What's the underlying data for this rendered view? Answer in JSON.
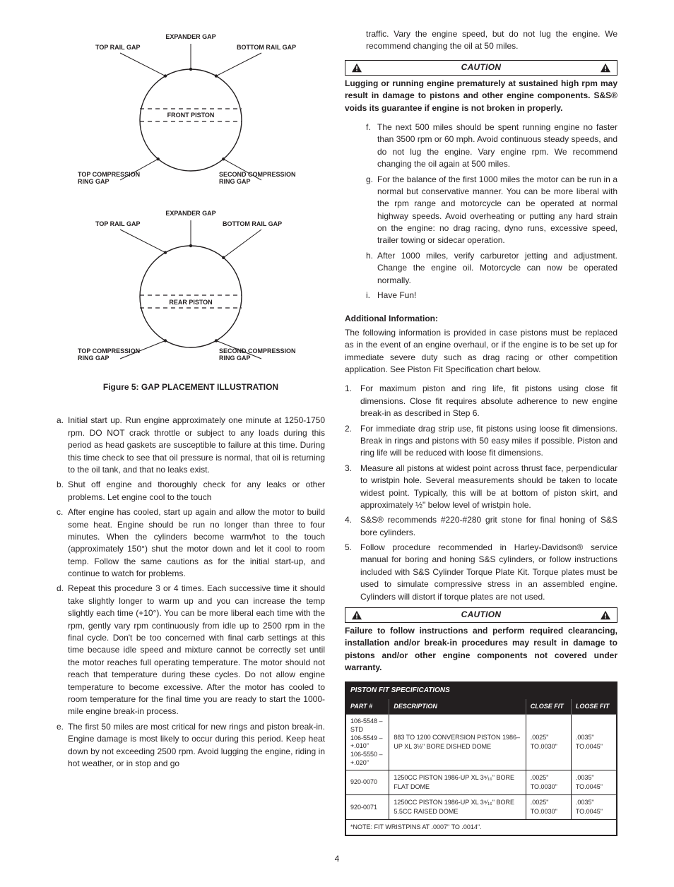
{
  "diagrams": {
    "radius": 72,
    "stroke": "#231f20",
    "stroke_width": 1.4,
    "front": {
      "center_label": "FRONT PISTON",
      "labels": {
        "top_rail": "TOP RAIL GAP",
        "expander": "EXPANDER GAP",
        "bottom_rail": "BOTTOM RAIL GAP",
        "top_comp": "TOP COMPRESSION\nRING GAP",
        "second_comp": "SECOND COMPRESSION\nRING GAP"
      }
    },
    "rear": {
      "center_label": "REAR PISTON",
      "labels": {
        "top_rail": "TOP RAIL GAP",
        "expander": "EXPANDER GAP",
        "bottom_rail": "BOTTOM RAIL GAP",
        "top_comp": "TOP COMPRESSION\nRING GAP",
        "second_comp": "SECOND COMPRESSION\nRING GAP"
      }
    }
  },
  "figure_caption": "Figure 5: GAP PLACEMENT ILLUSTRATION",
  "left_list": [
    {
      "m": "a.",
      "t": "Initial start up. Run engine approximately one minute at 1250-1750 rpm. DO NOT crack throttle or subject to any loads during this period as head gaskets are susceptible to failure at this time. During this time check to see that oil pressure is normal, that oil is returning to the oil tank, and that no leaks exist."
    },
    {
      "m": "b.",
      "t": "Shut off engine and thoroughly check for any leaks or other problems. Let engine cool to the touch"
    },
    {
      "m": "c.",
      "t": "After engine has cooled, start up again and allow the motor to build some heat. Engine should be run no longer than three to four minutes. When the cylinders become warm/hot to the touch (approximately 150°) shut the motor down and let it cool to room temp. Follow the same cautions as for the initial start-up, and continue to watch for problems."
    },
    {
      "m": "d.",
      "t": "Repeat this procedure 3 or 4 times. Each successive time it should take slightly longer to warm up and you can increase the temp slightly each time (+10°). You can be more liberal each time with the rpm, gently vary rpm continuously from idle up to 2500 rpm in the final cycle. Don't be too concerned with final carb settings at this time because idle speed and mixture cannot be correctly set until the motor reaches full operating temperature. The motor should not reach that temperature during these cycles. Do not allow engine temperature to become excessive. After the motor has cooled to room temperature for the final time you are ready to start the 1000-mile engine break-in process."
    },
    {
      "m": "e.",
      "t": "The first 50 miles are most critical for new rings and piston break-in. Engine damage is most likely to occur during this period. Keep heat down by not exceeding 2500 rpm. Avoid lugging the engine, riding in hot weather, or in stop and go"
    }
  ],
  "right_top_para": "traffic. Vary the engine speed, but do not lug the engine. We recommend changing the oil at 50 miles.",
  "caution1": {
    "label": "CAUTION",
    "text": "Lugging or running engine prematurely at sustained high rpm may result in damage to pistons and other engine components. S&S® voids its guarantee if engine is not broken in properly."
  },
  "right_list": [
    {
      "m": "f.",
      "t": "The next 500 miles should be spent running engine no faster than 3500 rpm or 60 mph. Avoid continuous steady speeds, and do not lug the engine. Vary engine rpm. We recommend changing the oil again at 500 miles."
    },
    {
      "m": "g.",
      "t": "For the balance of the first 1000 miles the motor can be run in a normal but conservative manner. You can be more liberal with the rpm range and motorcycle can be operated at normal highway speeds. Avoid overheating or putting any hard strain on the engine: no drag racing, dyno runs, excessive speed, trailer towing or sidecar operation."
    },
    {
      "m": "h.",
      "t": "After 1000 miles, verify carburetor jetting and adjustment. Change the engine oil. Motorcycle can now be operated normally."
    },
    {
      "m": "i.",
      "t": "Have Fun!"
    }
  ],
  "additional": {
    "heading": "Additional Information:",
    "para": "The following information is provided in case pistons must be replaced as in the event of an engine overhaul, or if the engine is to be set up for immediate severe duty such as drag racing or other competition application. See Piston Fit Specification chart below."
  },
  "num_list": [
    {
      "m": "1.",
      "t": "For maximum piston and ring life, fit pistons using close fit dimensions. Close fit requires absolute adherence to new engine break-in as described in Step 6."
    },
    {
      "m": "2.",
      "t": "For immediate drag strip use, fit pistons using loose fit dimensions. Break in rings and pistons with 50 easy miles if possible. Piston and ring life will be reduced with loose fit dimensions."
    },
    {
      "m": "3.",
      "t": "Measure all pistons at widest point across thrust face, perpendicular to wristpin hole. Several measurements should be taken to locate widest point. Typically, this will be at bottom of piston skirt, and approximately ½\" below level of wristpin hole."
    },
    {
      "m": "4.",
      "t": "S&S® recommends #220-#280 grit stone for final honing of S&S bore cylinders."
    },
    {
      "m": "5.",
      "t": "Follow procedure recommended in Harley-Davidson® service manual for boring and honing S&S cylinders, or follow instructions included with S&S Cylinder Torque Plate Kit. Torque plates must be used to simulate compressive stress in an assembled engine. Cylinders will distort if torque plates are not used."
    }
  ],
  "caution2": {
    "label": "CAUTION",
    "text": "Failure to follow instructions and perform required clearancing, installation and/or break-in procedures may result in damage to pistons and/or other engine components not covered under warranty."
  },
  "table": {
    "title": "PISTON FIT SPECIFICATIONS",
    "columns": [
      "PART #",
      "DESCRIPTION",
      "CLOSE FIT",
      "LOOSE FIT"
    ],
    "rows": [
      {
        "part": "106-5548 – STD\n106-5549 – +.010\"\n106-5550 – +.020\"",
        "desc": "883 TO 1200 CONVERSION PISTON 1986–UP XL 3½\" BORE DISHED DOME",
        "close": ".0025\" TO.0030\"",
        "loose": ".0035\" TO.0045\""
      },
      {
        "part": "920-0070",
        "desc": "1250CC PISTON 1986-UP XL 3⁹⁄₁₆\" BORE FLAT DOME",
        "close": ".0025\" TO.0030\"",
        "loose": ".0035\" TO.0045\""
      },
      {
        "part": "920-0071",
        "desc": "1250CC PISTON 1986-UP XL 3⁹⁄₁₆\" BORE 5.5CC RAISED DOME",
        "close": ".0025\" TO.0030\"",
        "loose": ".0035\" TO.0045\""
      }
    ],
    "footnote": "*NOTE: FIT WRISTPINS AT .0007\" TO .0014\"."
  },
  "page_number": "4"
}
